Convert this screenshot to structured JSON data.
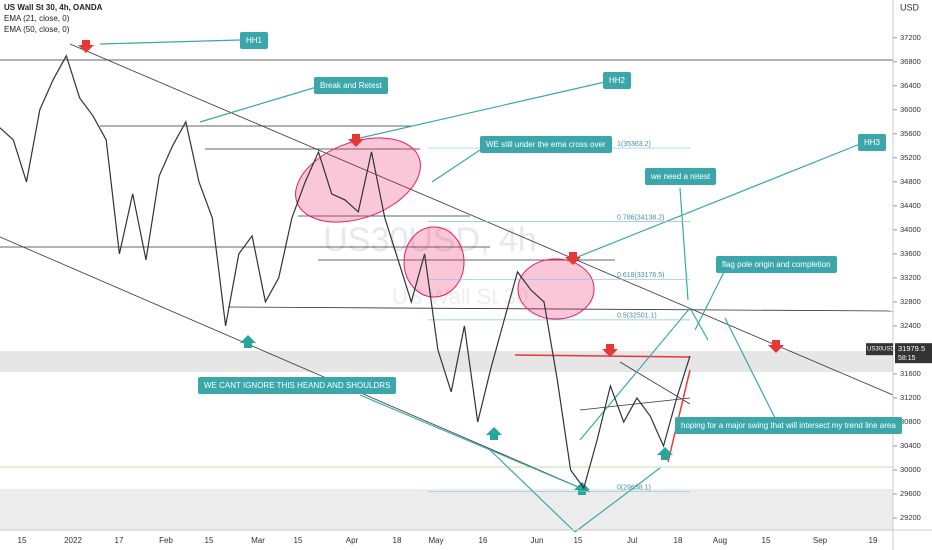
{
  "header": {
    "symbol": "US Wall St 30, 4h, OANDA",
    "ema1": "EMA (21, close, 0)",
    "ema2": "EMA (50, close, 0)",
    "currency": "USD"
  },
  "watermark": {
    "ticker": "US30USD, 4h",
    "name": "US Wall St 30"
  },
  "chart_data": {
    "type": "line",
    "ylim": [
      29000,
      37830
    ],
    "yticks": [
      29200,
      29600,
      30000,
      30400,
      30800,
      31200,
      31600,
      32000,
      32400,
      32800,
      33200,
      33600,
      34000,
      34400,
      34800,
      35200,
      35600,
      36000,
      36400,
      36800,
      37200
    ],
    "xticks": [
      "15",
      "2022",
      "17",
      "Feb",
      "15",
      "Mar",
      "15",
      "Apr",
      "18",
      "May",
      "16",
      "Jun",
      "15",
      "Jul",
      "18",
      "Aug",
      "15",
      "Sep",
      "19"
    ],
    "series": [
      {
        "name": "US30USD",
        "color": "#333333",
        "values": [
          35700,
          35500,
          34800,
          36000,
          36500,
          36900,
          36200,
          35900,
          35500,
          33600,
          34600,
          33500,
          34900,
          35400,
          35800,
          34800,
          34200,
          32400,
          33600,
          33900,
          32800,
          33200,
          34200,
          34800,
          35300,
          34600,
          34500,
          34300,
          35300,
          34200,
          33500,
          32800,
          33600,
          32000,
          31300,
          32400,
          30800,
          31700,
          32500,
          33300,
          33000,
          32800,
          31500,
          30000,
          29700,
          30500,
          31400,
          30800,
          31200,
          30900,
          30400,
          31200,
          31900
        ]
      }
    ],
    "last_price": {
      "symbol": "US30USD",
      "value": 31979.5,
      "countdown": "58:15"
    },
    "fib": [
      {
        "label": "1(35363.2)",
        "value": 35363.2
      },
      {
        "label": "0.786(34138.2)",
        "value": 34138.2
      },
      {
        "label": "0.618(33176.5)",
        "value": 33176.5
      },
      {
        "label": "0.5(32501.1)",
        "value": 32501.1
      },
      {
        "label": "0(29638.1)",
        "value": 29638.1
      }
    ]
  },
  "annotations": [
    "HH1",
    "Break and Retest",
    "HH2",
    "WE still under the ema cross over",
    "HH3",
    "we need a retest",
    "flag pole origin and completion",
    "WE CANT IGNORE THIS HEAND AND SHOULDRS",
    "hoping for a major swing that will intersect my trend line area"
  ]
}
